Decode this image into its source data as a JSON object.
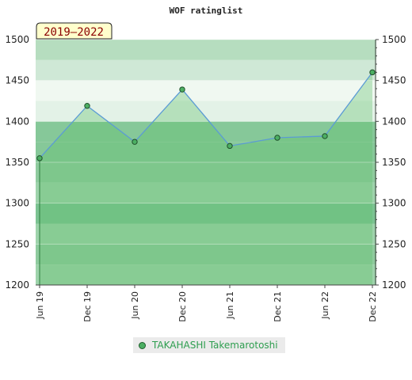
{
  "chart_data": {
    "type": "area",
    "title": "WOF ratinglist",
    "period_label": "2019–2022",
    "x": [
      "Jun 19",
      "Dec 19",
      "Jun 20",
      "Dec 20",
      "Jun 21",
      "Dec 21",
      "Jun 22",
      "Dec 22"
    ],
    "series": [
      {
        "name": "TAKAHASHI Takemarotoshi",
        "values": [
          1355,
          1419,
          1375,
          1439,
          1370,
          1380,
          1382,
          1460
        ]
      }
    ],
    "ylim": [
      1200,
      1500
    ],
    "yticks": [
      1200,
      1250,
      1300,
      1350,
      1400,
      1450,
      1500
    ],
    "grid": true,
    "legend_position": "bottom"
  },
  "colors": {
    "line": "#5b9bd5",
    "area": "#5fbf6a",
    "marker": "#4caf63",
    "band_light": "#f0f8f1",
    "band_mid": "#cfe8d6",
    "band_dark": "#7fc894",
    "period_bg": "#ffffcc"
  }
}
